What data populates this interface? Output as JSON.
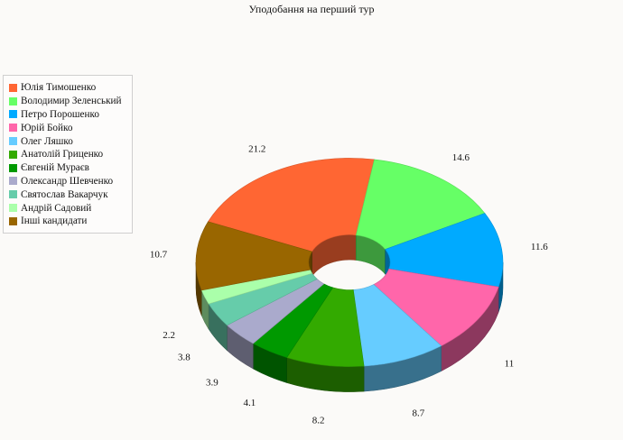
{
  "chart_data": {
    "type": "pie",
    "title": "Уподобання на перший тур",
    "legend_position": "left",
    "series": [
      {
        "name": "Юлія Тимошенко",
        "value": 21.2,
        "color": "#ff6633"
      },
      {
        "name": "Володимир Зеленський",
        "value": 14.6,
        "color": "#66ff66"
      },
      {
        "name": "Петро Порошенко",
        "value": 11.6,
        "color": "#00aaff"
      },
      {
        "name": "Юрій Бойко",
        "value": 11,
        "color": "#ff66aa"
      },
      {
        "name": "Олег Ляшко",
        "value": 8.7,
        "color": "#66ccff"
      },
      {
        "name": "Анатолій Гриценко",
        "value": 8.2,
        "color": "#33aa00"
      },
      {
        "name": "Євгеній Мураєв",
        "value": 4.1,
        "color": "#009900"
      },
      {
        "name": "Олександр Шевченко",
        "value": 3.9,
        "color": "#aaaacc"
      },
      {
        "name": "Святослав Вакарчук",
        "value": 3.8,
        "color": "#66ccaa"
      },
      {
        "name": "Андрій Садовий",
        "value": 2.2,
        "color": "#aaffaa"
      },
      {
        "name": "Інші кандидати",
        "value": 10.7,
        "color": "#996600"
      }
    ]
  }
}
